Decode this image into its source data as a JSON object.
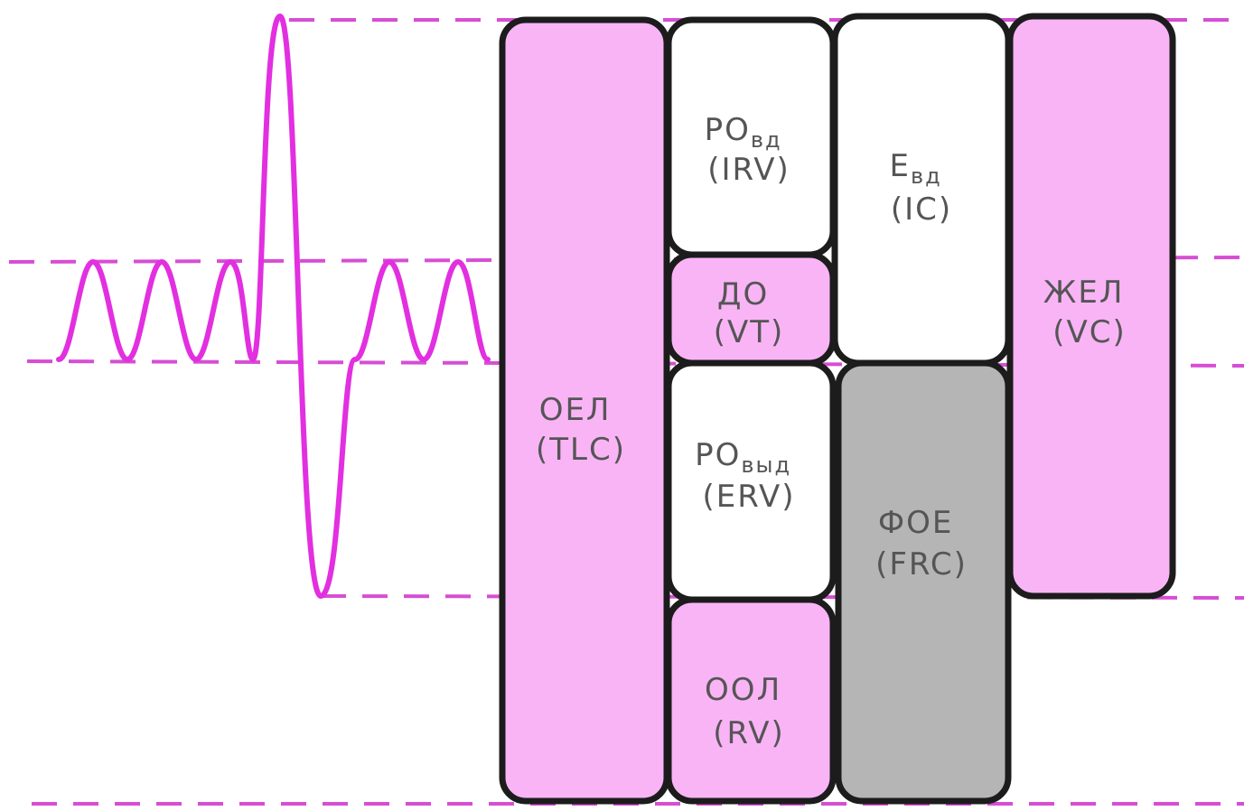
{
  "colors": {
    "pink": "#f9b4f6",
    "gray": "#b5b5b5",
    "white": "#ffffff",
    "trace": "#e22fe0",
    "dashes": "#d64ed4"
  },
  "volumes": {
    "tlc": {
      "abbr": "ОЕЛ",
      "code": "(TLC)"
    },
    "irv": {
      "abbr": "РО",
      "sub": "вд",
      "code": "(IRV)"
    },
    "vt": {
      "abbr": "ДО",
      "code": "(VT)"
    },
    "erv": {
      "abbr": "РО",
      "sub": "выд",
      "code": "(ERV)"
    },
    "rv": {
      "abbr": "ООЛ",
      "code": "(RV)"
    },
    "ic": {
      "abbr": "Е",
      "sub": "вд",
      "code": "(IC)"
    },
    "frc": {
      "abbr": "ФОЕ",
      "code": "(FRC)"
    },
    "vc": {
      "abbr": "ЖЕЛ",
      "code": "(VC)"
    }
  }
}
